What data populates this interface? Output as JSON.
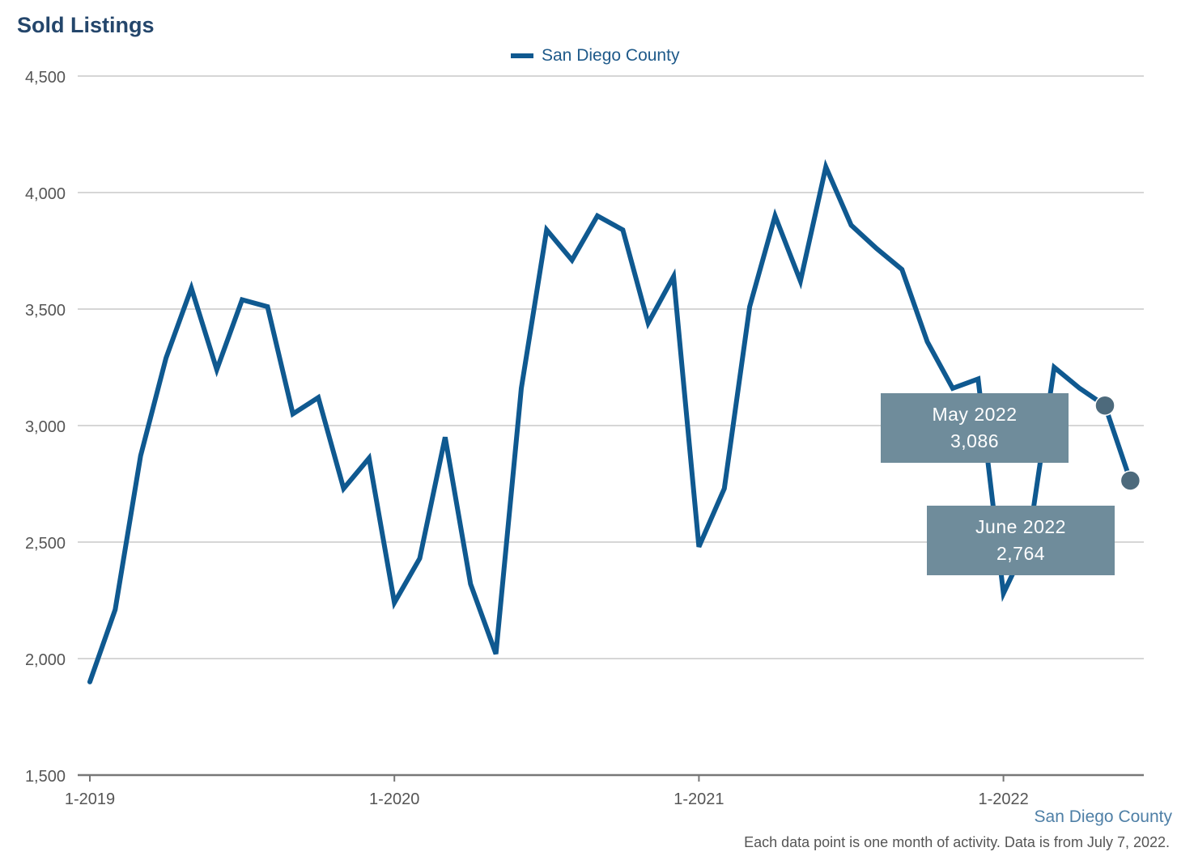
{
  "chart_data": {
    "type": "line",
    "title": "Sold Listings",
    "legend": {
      "placement": "top-center",
      "entries": [
        "San Diego County"
      ]
    },
    "series": [
      {
        "name": "San Diego County",
        "color": "#0f5990",
        "values": [
          1900,
          2210,
          2870,
          3290,
          3590,
          3240,
          3540,
          3510,
          3050,
          3120,
          2730,
          2860,
          2240,
          2430,
          2950,
          2320,
          2020,
          3160,
          3840,
          3710,
          3900,
          3840,
          3440,
          3640,
          2480,
          2730,
          3510,
          3900,
          3620,
          4110,
          3860,
          3760,
          3670,
          3360,
          3160,
          3200,
          2280,
          2510,
          3250,
          3160,
          3086,
          2764
        ]
      }
    ],
    "x_start": "1-2019",
    "x_ticks": [
      "1-2019",
      "1-2020",
      "1-2021",
      "1-2022"
    ],
    "y_ticks": [
      "1,500",
      "2,000",
      "2,500",
      "3,000",
      "3,500",
      "4,000",
      "4,500"
    ],
    "ylim": [
      1500,
      4500
    ],
    "grid": true,
    "annotations": [
      {
        "month": "May 2022",
        "value": "3,086"
      },
      {
        "month": "June 2022",
        "value": "2,764"
      }
    ]
  },
  "region_label": "San Diego County",
  "footnote": "Each data point is one month of activity. Data is from July 7, 2022.",
  "colors": {
    "line": "#0f5990",
    "title": "#24466b",
    "callout": "#6f8c9b",
    "marker": "#4d6a7c"
  }
}
